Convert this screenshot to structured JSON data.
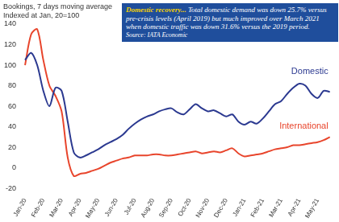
{
  "chart_data": {
    "type": "line",
    "y_label": [
      "Bookings, 7 days moving average",
      "Indexed at Jan, 20=100"
    ],
    "annotation": {
      "highlight": "Domestic recovery...",
      "text": "Total domestic demand was down 25.7% versus pre-crisis levels (April 2019) but much improved over March 2021 when domestic traffic was down 31.6% versus the 2019 period.",
      "source": "Source: IATA Economic"
    },
    "categories": [
      "Jan-20",
      null,
      null,
      "Feb-20",
      null,
      null,
      "Mar-20",
      null,
      null,
      "Apr-20",
      null,
      null,
      "May-20",
      null,
      null,
      "Jun-20",
      null,
      null,
      "Jul-20",
      null,
      null,
      "Aug-20",
      null,
      null,
      "Sep-20",
      null,
      null,
      "Oct-20",
      null,
      null,
      "Nov-20",
      null,
      null,
      "Dec-20",
      null,
      null,
      "Jan-21",
      null,
      null,
      "Feb-21",
      null,
      null,
      "Mar-21",
      null,
      null,
      "Apr-21",
      null,
      null,
      "May-21",
      null,
      null
    ],
    "series": [
      {
        "name": "Domestic",
        "color": "#2b3990",
        "values": [
          105,
          112,
          100,
          75,
          60,
          78,
          75,
          45,
          15,
          10,
          12,
          15,
          18,
          22,
          25,
          28,
          32,
          38,
          43,
          47,
          50,
          52,
          55,
          57,
          58,
          54,
          52,
          57,
          62,
          58,
          55,
          56,
          53,
          50,
          52,
          45,
          42,
          45,
          43,
          48,
          55,
          62,
          65,
          72,
          78,
          82,
          80,
          72,
          68,
          75,
          74
        ]
      },
      {
        "name": "International",
        "color": "#e8452c",
        "values": [
          100,
          130,
          135,
          105,
          80,
          70,
          55,
          10,
          -8,
          -6,
          -5,
          -3,
          -1,
          2,
          5,
          7,
          9,
          10,
          12,
          12,
          12,
          13,
          13,
          12,
          12,
          13,
          14,
          15,
          16,
          14,
          15,
          16,
          15,
          17,
          19,
          14,
          11,
          12,
          13,
          14,
          16,
          18,
          19,
          20,
          22,
          22,
          23,
          24,
          25,
          27,
          30
        ]
      }
    ],
    "ylim": [
      -20,
      140
    ],
    "yticks": [
      -20,
      0,
      20,
      40,
      60,
      80,
      100,
      120,
      140
    ],
    "grid": false
  }
}
